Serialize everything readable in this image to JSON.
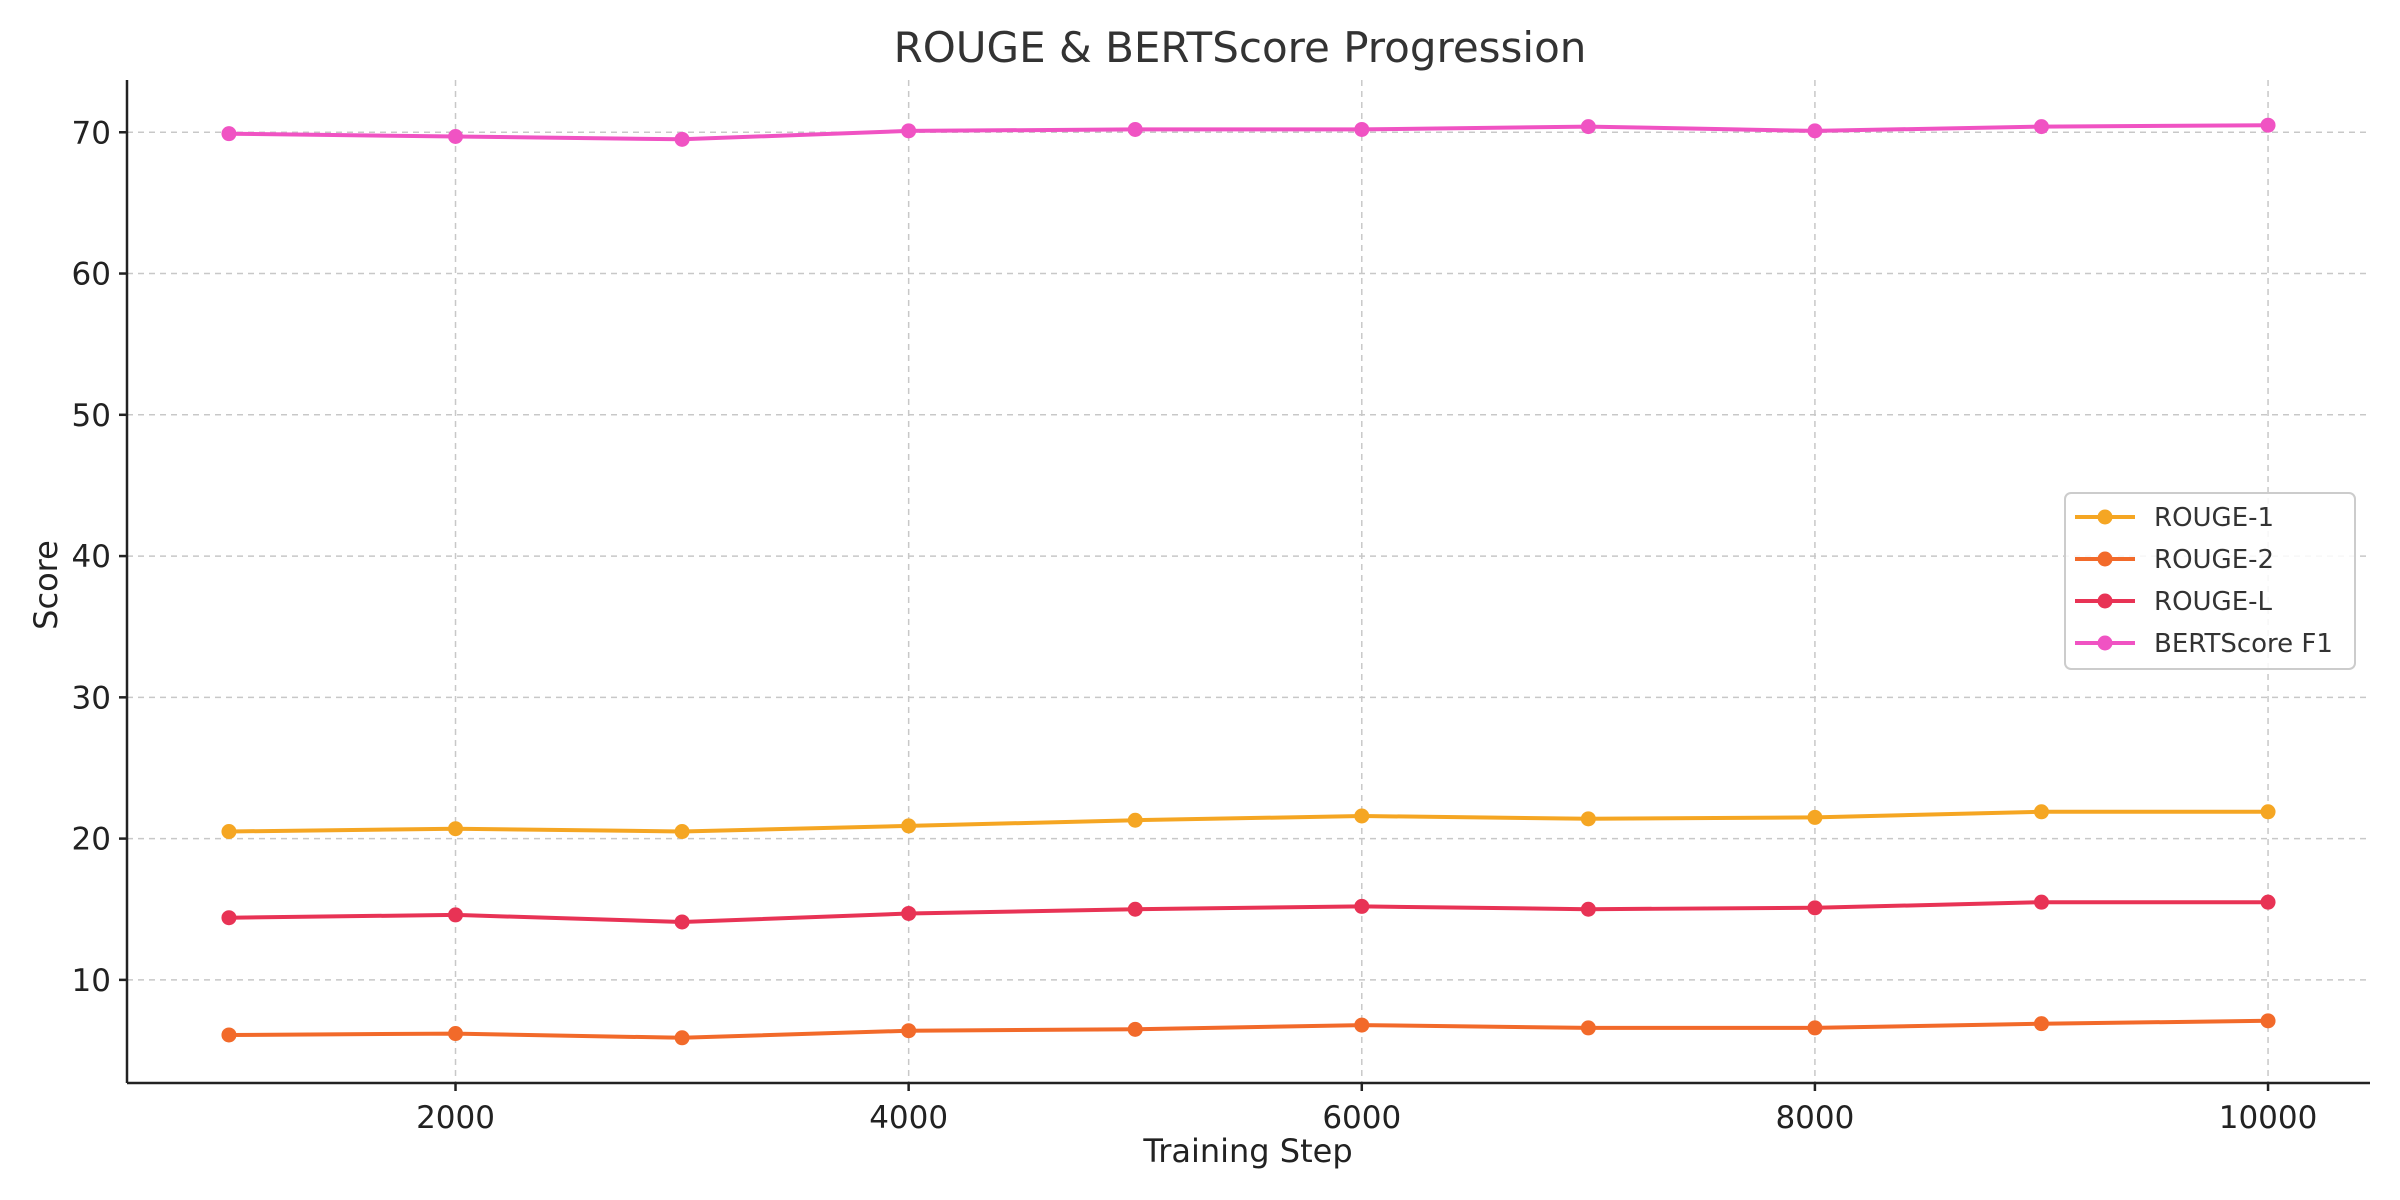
{
  "chart_data": {
    "type": "line",
    "title": "ROUGE & BERTScore Progression",
    "xlabel": "Training Step",
    "ylabel": "Score",
    "x": [
      1000,
      2000,
      3000,
      4000,
      5000,
      6000,
      7000,
      8000,
      9000,
      10000
    ],
    "xlim": [
      550,
      10450
    ],
    "ylim": [
      2.7,
      73.7
    ],
    "xticks": [
      2000,
      4000,
      6000,
      8000,
      10000
    ],
    "yticks": [
      10,
      20,
      30,
      40,
      50,
      60,
      70
    ],
    "grid": true,
    "legend": "center-right",
    "series": [
      {
        "name": "ROUGE-1",
        "color": "#f5a623",
        "values": [
          20.5,
          20.7,
          20.5,
          20.9,
          21.3,
          21.6,
          21.4,
          21.5,
          21.9,
          21.9
        ]
      },
      {
        "name": "ROUGE-2",
        "color": "#f26a2a",
        "values": [
          6.1,
          6.2,
          5.9,
          6.4,
          6.5,
          6.8,
          6.6,
          6.6,
          6.9,
          7.1
        ]
      },
      {
        "name": "ROUGE-L",
        "color": "#e83355",
        "values": [
          14.4,
          14.6,
          14.1,
          14.7,
          15.0,
          15.2,
          15.0,
          15.1,
          15.5,
          15.5
        ]
      },
      {
        "name": "BERTScore F1",
        "color": "#f053c3",
        "values": [
          69.9,
          69.7,
          69.5,
          70.1,
          70.2,
          70.2,
          70.4,
          70.1,
          70.4,
          70.5
        ]
      }
    ]
  }
}
